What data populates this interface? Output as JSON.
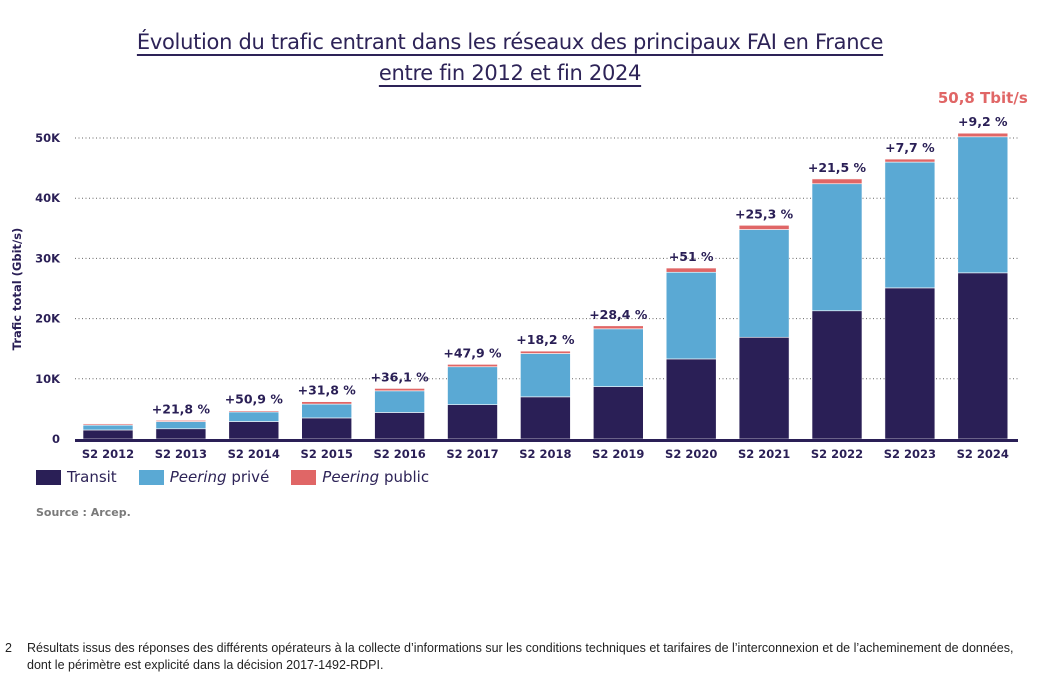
{
  "chart_data": {
    "type": "bar",
    "stacked": true,
    "title_lines": [
      "Évolution du trafic entrant dans les réseaux des principaux FAI en France",
      "entre fin 2012 et fin 2024"
    ],
    "ylabel": "Trafic total (Gbit/s)",
    "xlabel": "",
    "ylim": [
      0,
      50000
    ],
    "yticks": [
      0,
      10000,
      20000,
      30000,
      40000,
      50000
    ],
    "ytick_labels": [
      "0",
      "10K",
      "20K",
      "30K",
      "40K",
      "50K"
    ],
    "grid": "horizontal dotted",
    "legend_position": "bottom-left",
    "categories": [
      "S2 2012",
      "S2 2013",
      "S2 2014",
      "S2 2015",
      "S2 2016",
      "S2 2017",
      "S2 2018",
      "S2 2019",
      "S2 2020",
      "S2 2021",
      "S2 2022",
      "S2 2023",
      "S2 2024"
    ],
    "series": [
      {
        "name": "Transit",
        "color": "#2a1f56",
        "values": [
          1500,
          1700,
          2900,
          3500,
          4400,
          5700,
          7000,
          8700,
          13300,
          16900,
          21300,
          25100,
          27600
        ]
      },
      {
        "name": "Peering privé",
        "color": "#5aa9d4",
        "values": [
          800,
          1200,
          1600,
          2300,
          3600,
          6300,
          7200,
          9600,
          14400,
          17900,
          21100,
          20900,
          22600
        ]
      },
      {
        "name": "Peering public",
        "color": "#e06666",
        "values": [
          200,
          200,
          200,
          400,
          400,
          400,
          400,
          500,
          700,
          700,
          800,
          500,
          600
        ]
      }
    ],
    "growth_labels": [
      "",
      "+21,8 %",
      "+50,9 %",
      "+31,8 %",
      "+36,1 %",
      "+47,9 %",
      "+18,2 %",
      "+28,4 %",
      "+51 %",
      "+25,3 %",
      "+21,5 %",
      "+7,7 %",
      "+9,2 %"
    ],
    "annotation": "50,8 Tbit/s",
    "annotation_color": "#e06666"
  },
  "source": "Source : Arcep.",
  "footnote": {
    "number": "2",
    "text": "Résultats issus des réponses des différents opérateurs à la collecte d’informations sur les conditions techniques et tarifaires de l’interconnexion et de l’acheminement de données, dont le périmètre est explicité dans la décision 2017-1492-RDPI."
  }
}
